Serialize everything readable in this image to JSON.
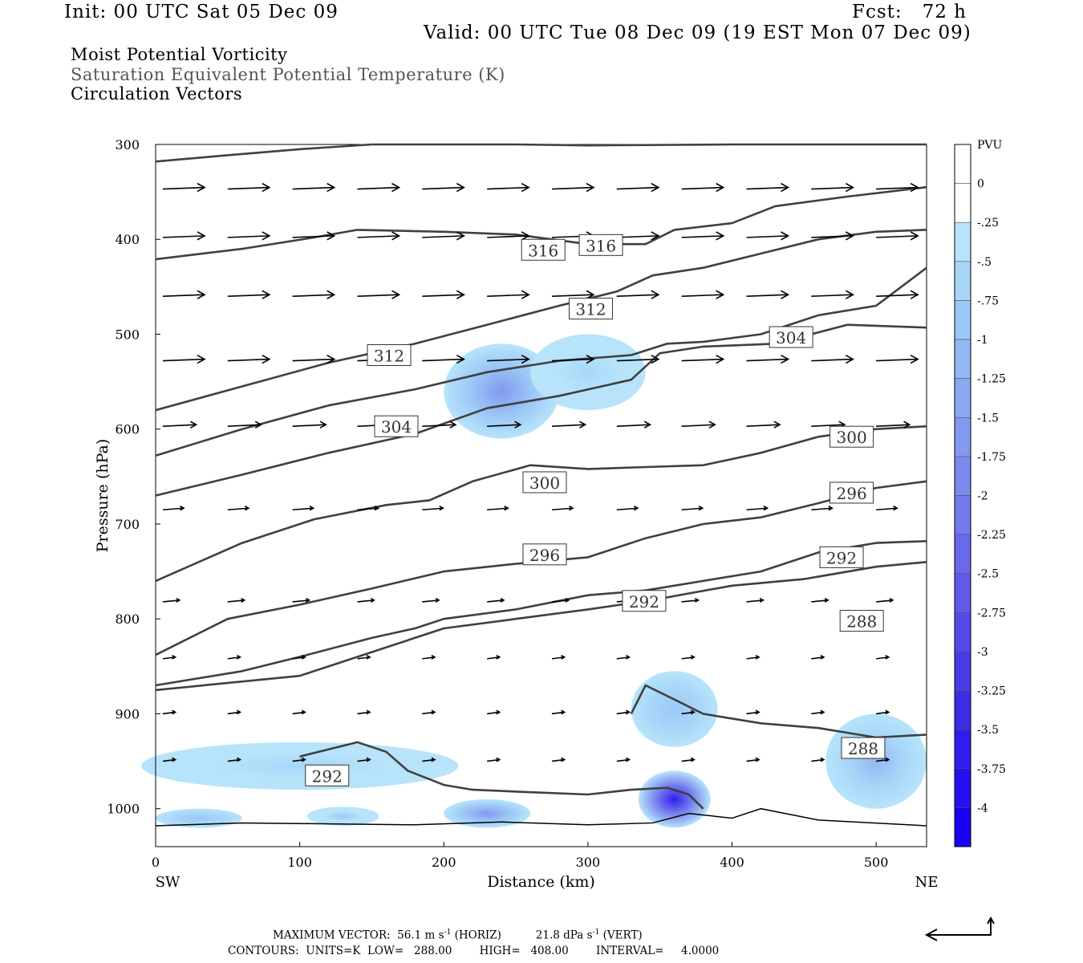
{
  "header": {
    "init": "Init: 00 UTC Sat 05 Dec 09",
    "fcst": "Fcst:   72 h",
    "valid": "Valid: 00 UTC Tue 08 Dec 09 (19 EST Mon 07 Dec 09)",
    "line1": "Moist Potential Vorticity",
    "line2": "Saturation Equivalent Potential Temperature (K)",
    "line3": "Circulation Vectors"
  },
  "footer": {
    "vector_label": "MAXIMUM VECTOR:",
    "horiz_value": "56.1 m s",
    "horiz_sup": "-1",
    "horiz_label": "(HORIZ)",
    "vert_value": "21.8 dPa s",
    "vert_sup": "-1",
    "vert_label": "(VERT)",
    "contours": "CONTOURS:  UNITS=K  LOW=   288.00        HIGH=   408.00        INTERVAL=     4.0000"
  },
  "colors": {
    "contour": "#404040",
    "vector": "#000000",
    "pv_levels": [
      "#ffffff",
      "#ffffff",
      "#b7e4fb",
      "#a8d6f8",
      "#9cc8f6",
      "#92b8f4",
      "#8aa9f2",
      "#8399f0",
      "#7b89ee",
      "#7379ee",
      "#6a69ec",
      "#605aea",
      "#554ae8",
      "#4a3be6",
      "#3e2ce4",
      "#321dee",
      "#2410f2",
      "#1a00f5"
    ]
  },
  "chart_data": {
    "type": "heatmap",
    "xlabel": "Distance (km)",
    "ylabel": "Pressure (hPa)",
    "xlim": [
      0,
      535
    ],
    "ylim": [
      1040,
      300
    ],
    "x_ticks": [
      0,
      100,
      200,
      300,
      400,
      500
    ],
    "y_ticks": [
      300,
      400,
      500,
      600,
      700,
      800,
      900,
      1000
    ],
    "x_end_labels": {
      "left": "SW",
      "right": "NE"
    },
    "colorbar": {
      "title": "PVU",
      "ticks": [
        "0",
        "-.25",
        "-.5",
        "-.75",
        "-1",
        "-1.25",
        "-1.5",
        "-1.75",
        "-2",
        "-2.25",
        "-2.5",
        "-2.75",
        "-3",
        "-3.25",
        "-3.5",
        "-3.75",
        "-4"
      ]
    },
    "contour_labels": [
      {
        "text": "316",
        "x": 269,
        "p": 411
      },
      {
        "text": "316",
        "x": 309,
        "p": 406
      },
      {
        "text": "312",
        "x": 302,
        "p": 473
      },
      {
        "text": "312",
        "x": 162,
        "p": 522
      },
      {
        "text": "304",
        "x": 441,
        "p": 503
      },
      {
        "text": "304",
        "x": 167,
        "p": 597
      },
      {
        "text": "300",
        "x": 483,
        "p": 608
      },
      {
        "text": "300",
        "x": 270,
        "p": 656
      },
      {
        "text": "296",
        "x": 483,
        "p": 667
      },
      {
        "text": "296",
        "x": 270,
        "p": 732
      },
      {
        "text": "292",
        "x": 476,
        "p": 735
      },
      {
        "text": "292",
        "x": 339,
        "p": 781
      },
      {
        "text": "288",
        "x": 490,
        "p": 802
      },
      {
        "text": "288",
        "x": 491,
        "p": 936
      },
      {
        "text": "292",
        "x": 119,
        "p": 965
      }
    ],
    "contours": [
      {
        "level": "322",
        "pts": [
          [
            0,
            318
          ],
          [
            45,
            312
          ],
          [
            100,
            305
          ],
          [
            150,
            300
          ],
          [
            250,
            300
          ],
          [
            300,
            301
          ],
          [
            400,
            300
          ],
          [
            535,
            300
          ]
        ]
      },
      {
        "level": "316",
        "pts": [
          [
            0,
            421
          ],
          [
            60,
            410
          ],
          [
            110,
            398
          ],
          [
            140,
            390
          ],
          [
            200,
            392
          ],
          [
            250,
            395
          ],
          [
            300,
            405
          ],
          [
            340,
            405
          ],
          [
            360,
            390
          ],
          [
            400,
            383
          ],
          [
            430,
            365
          ],
          [
            480,
            355
          ],
          [
            535,
            345
          ]
        ]
      },
      {
        "level": "312",
        "pts": [
          [
            0,
            580
          ],
          [
            60,
            555
          ],
          [
            120,
            530
          ],
          [
            180,
            510
          ],
          [
            230,
            490
          ],
          [
            280,
            470
          ],
          [
            320,
            455
          ],
          [
            345,
            438
          ],
          [
            380,
            430
          ],
          [
            420,
            415
          ],
          [
            460,
            400
          ],
          [
            500,
            392
          ],
          [
            535,
            390
          ]
        ]
      },
      {
        "level": "308",
        "pts": [
          [
            0,
            628
          ],
          [
            60,
            600
          ],
          [
            120,
            575
          ],
          [
            180,
            558
          ],
          [
            230,
            540
          ],
          [
            280,
            528
          ],
          [
            330,
            522
          ],
          [
            355,
            510
          ],
          [
            380,
            508
          ],
          [
            420,
            500
          ],
          [
            460,
            480
          ],
          [
            500,
            470
          ],
          [
            535,
            430
          ]
        ]
      },
      {
        "level": "304",
        "pts": [
          [
            0,
            670
          ],
          [
            60,
            648
          ],
          [
            120,
            625
          ],
          [
            180,
            605
          ],
          [
            230,
            578
          ],
          [
            280,
            565
          ],
          [
            330,
            548
          ],
          [
            350,
            520
          ],
          [
            380,
            513
          ],
          [
            430,
            510
          ],
          [
            480,
            490
          ],
          [
            535,
            493
          ]
        ]
      },
      {
        "level": "300",
        "pts": [
          [
            0,
            760
          ],
          [
            60,
            720
          ],
          [
            110,
            695
          ],
          [
            160,
            680
          ],
          [
            190,
            675
          ],
          [
            220,
            655
          ],
          [
            260,
            638
          ],
          [
            300,
            642
          ],
          [
            340,
            640
          ],
          [
            380,
            638
          ],
          [
            420,
            625
          ],
          [
            460,
            608
          ],
          [
            500,
            600
          ],
          [
            535,
            597
          ]
        ]
      },
      {
        "level": "296",
        "pts": [
          [
            0,
            838
          ],
          [
            50,
            800
          ],
          [
            100,
            785
          ],
          [
            150,
            768
          ],
          [
            200,
            750
          ],
          [
            250,
            742
          ],
          [
            300,
            735
          ],
          [
            340,
            715
          ],
          [
            380,
            700
          ],
          [
            420,
            693
          ],
          [
            460,
            678
          ],
          [
            500,
            662
          ],
          [
            535,
            655
          ]
        ]
      },
      {
        "level": "292",
        "pts": [
          [
            0,
            870
          ],
          [
            60,
            855
          ],
          [
            100,
            840
          ],
          [
            150,
            820
          ],
          [
            180,
            810
          ],
          [
            200,
            800
          ],
          [
            250,
            790
          ],
          [
            300,
            775
          ],
          [
            340,
            770
          ],
          [
            380,
            760
          ],
          [
            420,
            750
          ],
          [
            460,
            730
          ],
          [
            500,
            720
          ],
          [
            535,
            718
          ]
        ]
      },
      {
        "level": "288",
        "pts": [
          [
            0,
            875
          ],
          [
            100,
            860
          ],
          [
            150,
            835
          ],
          [
            200,
            810
          ],
          [
            250,
            800
          ],
          [
            300,
            790
          ],
          [
            345,
            780
          ],
          [
            400,
            765
          ],
          [
            450,
            758
          ],
          [
            500,
            745
          ],
          [
            535,
            740
          ]
        ]
      },
      {
        "level": "292b",
        "pts": [
          [
            100,
            945
          ],
          [
            140,
            930
          ],
          [
            160,
            940
          ],
          [
            175,
            960
          ],
          [
            200,
            975
          ],
          [
            220,
            980
          ],
          [
            250,
            982
          ],
          [
            300,
            985
          ],
          [
            330,
            980
          ],
          [
            355,
            978
          ],
          [
            370,
            985
          ],
          [
            380,
            1000
          ]
        ]
      },
      {
        "level": "288b",
        "pts": [
          [
            330,
            900
          ],
          [
            340,
            870
          ],
          [
            360,
            885
          ],
          [
            380,
            900
          ],
          [
            420,
            910
          ],
          [
            460,
            915
          ],
          [
            500,
            925
          ],
          [
            535,
            922
          ]
        ]
      }
    ],
    "pv_blobs": [
      {
        "x": 240,
        "p": 560,
        "rx": 40,
        "rp": 50,
        "v": -1.5
      },
      {
        "x": 300,
        "p": 540,
        "rx": 40,
        "rp": 40,
        "v": -0.6
      },
      {
        "x": 100,
        "p": 955,
        "rx": 110,
        "rp": 25,
        "v": -0.5
      },
      {
        "x": 360,
        "p": 895,
        "rx": 30,
        "rp": 40,
        "v": -0.8
      },
      {
        "x": 360,
        "p": 990,
        "rx": 25,
        "rp": 30,
        "v": -3.5
      },
      {
        "x": 500,
        "p": 950,
        "rx": 35,
        "rp": 50,
        "v": -0.9
      },
      {
        "x": 230,
        "p": 1005,
        "rx": 30,
        "rp": 15,
        "v": -1.6
      },
      {
        "x": 30,
        "p": 1010,
        "rx": 30,
        "rp": 10,
        "v": -0.8
      },
      {
        "x": 130,
        "p": 1008,
        "rx": 25,
        "rp": 10,
        "v": -0.7
      }
    ],
    "vectors": [
      {
        "p": 347,
        "u": 1.0,
        "v": 0.0
      },
      {
        "p": 398,
        "u": 1.0,
        "v": 0.0
      },
      {
        "p": 460,
        "u": 1.0,
        "v": 0.0
      },
      {
        "p": 528,
        "u": 1.0,
        "v": 0.0
      },
      {
        "p": 597,
        "u": 0.8,
        "v": 0.0
      },
      {
        "p": 685,
        "u": 0.5,
        "v": 0.0
      },
      {
        "p": 782,
        "u": 0.4,
        "v": 0.0
      },
      {
        "p": 842,
        "u": 0.3,
        "v": 0.0
      },
      {
        "p": 900,
        "u": 0.3,
        "v": 0.0
      },
      {
        "p": 950,
        "u": 0.3,
        "v": 0.0
      }
    ]
  }
}
